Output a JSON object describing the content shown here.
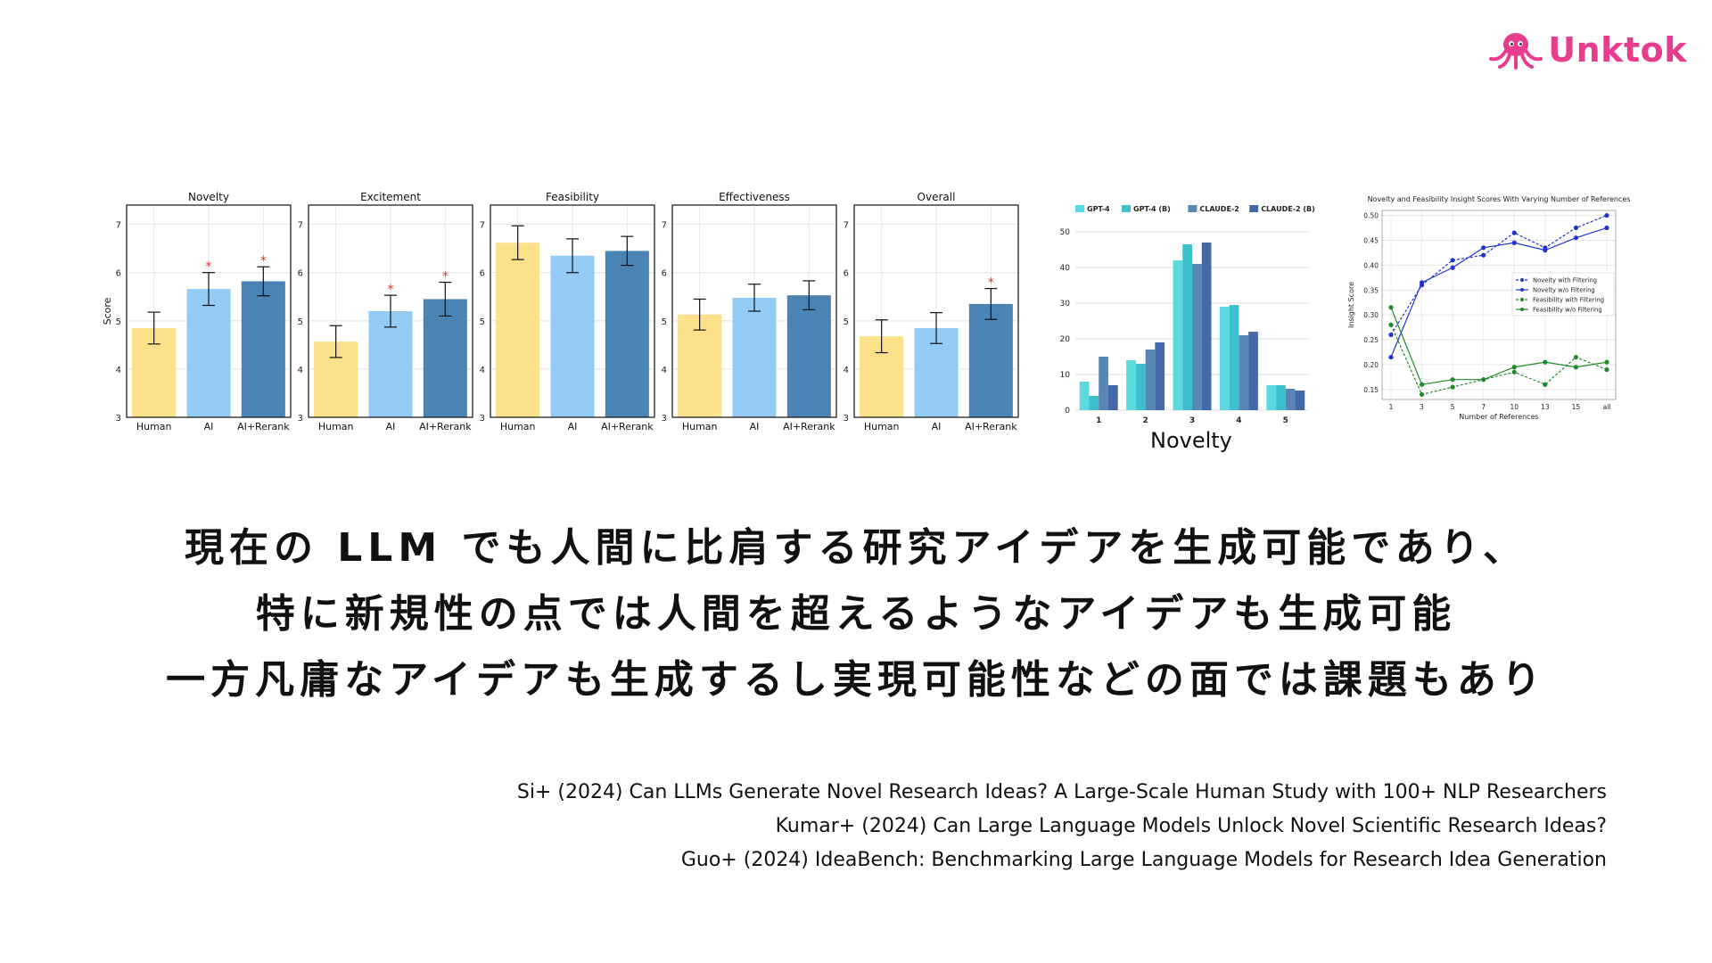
{
  "brand": {
    "name": "Unktok",
    "color": "#e83c8f",
    "icon": "octopus-icon"
  },
  "chart_data": [
    {
      "type": "bar",
      "title": "Novelty",
      "ylabel": "Score",
      "ylim": [
        3,
        7.4
      ],
      "yticks": [
        3,
        4,
        5,
        6,
        7
      ],
      "categories": [
        "Human",
        "AI",
        "AI+Rerank"
      ],
      "values": [
        4.85,
        5.66,
        5.82
      ],
      "errors": [
        0.33,
        0.34,
        0.3
      ],
      "significant": [
        false,
        true,
        true
      ],
      "colors": [
        "#fde08a",
        "#93cbf4",
        "#4a84b5"
      ]
    },
    {
      "type": "bar",
      "title": "Excitement",
      "ylabel": "",
      "ylim": [
        3,
        7.4
      ],
      "yticks": [
        3,
        4,
        5,
        6,
        7
      ],
      "categories": [
        "Human",
        "AI",
        "AI+Rerank"
      ],
      "values": [
        4.57,
        5.2,
        5.45
      ],
      "errors": [
        0.33,
        0.33,
        0.35
      ],
      "significant": [
        false,
        true,
        true
      ],
      "colors": [
        "#fde08a",
        "#93cbf4",
        "#4a84b5"
      ]
    },
    {
      "type": "bar",
      "title": "Feasibility",
      "ylabel": "",
      "ylim": [
        3,
        7.4
      ],
      "yticks": [
        3,
        4,
        5,
        6,
        7
      ],
      "categories": [
        "Human",
        "AI",
        "AI+Rerank"
      ],
      "values": [
        6.62,
        6.35,
        6.45
      ],
      "errors": [
        0.35,
        0.35,
        0.3
      ],
      "significant": [
        false,
        false,
        false
      ],
      "colors": [
        "#fde08a",
        "#93cbf4",
        "#4a84b5"
      ]
    },
    {
      "type": "bar",
      "title": "Effectiveness",
      "ylabel": "",
      "ylim": [
        3,
        7.4
      ],
      "yticks": [
        3,
        4,
        5,
        6,
        7
      ],
      "categories": [
        "Human",
        "AI",
        "AI+Rerank"
      ],
      "values": [
        5.13,
        5.48,
        5.53
      ],
      "errors": [
        0.32,
        0.28,
        0.3
      ],
      "significant": [
        false,
        false,
        false
      ],
      "colors": [
        "#fde08a",
        "#93cbf4",
        "#4a84b5"
      ]
    },
    {
      "type": "bar",
      "title": "Overall",
      "ylabel": "",
      "ylim": [
        3,
        7.4
      ],
      "yticks": [
        3,
        4,
        5,
        6,
        7
      ],
      "categories": [
        "Human",
        "AI",
        "AI+Rerank"
      ],
      "values": [
        4.68,
        4.85,
        5.35
      ],
      "errors": [
        0.34,
        0.32,
        0.32
      ],
      "significant": [
        false,
        false,
        true
      ],
      "colors": [
        "#fde08a",
        "#93cbf4",
        "#4a84b5"
      ]
    },
    {
      "type": "bar",
      "caption": "Novelty",
      "ylim": [
        0,
        52
      ],
      "yticks": [
        0,
        10,
        20,
        30,
        40,
        50
      ],
      "categories": [
        "1",
        "2",
        "3",
        "4",
        "5"
      ],
      "series": [
        {
          "name": "GPT-4",
          "color": "#5cd8df",
          "values": [
            8,
            14,
            42,
            29,
            7
          ]
        },
        {
          "name": "GPT-4 (B)",
          "color": "#3dbfcd",
          "values": [
            4,
            13,
            46.5,
            29.5,
            7
          ]
        },
        {
          "name": "CLAUDE-2",
          "color": "#5887b5",
          "values": [
            15,
            17,
            41,
            21,
            6
          ]
        },
        {
          "name": "CLAUDE-2 (B)",
          "color": "#4468a8",
          "values": [
            7,
            19,
            47,
            22,
            5.5
          ]
        }
      ]
    },
    {
      "type": "line",
      "title": "Novelty and Feasibility Insight Scores With Varying Number of References",
      "xlabel": "Number of References",
      "ylabel": "Insight Score",
      "categories": [
        "1",
        "3",
        "5",
        "7",
        "10",
        "13",
        "15",
        "all"
      ],
      "ylim": [
        0.13,
        0.51
      ],
      "yticks": [
        0.15,
        0.2,
        0.25,
        0.3,
        0.35,
        0.4,
        0.45,
        0.5
      ],
      "ytick_labels": [
        "0.15",
        "0.20",
        "0.25",
        "0.30",
        "0.35",
        "0.40",
        "0.45",
        "0.50"
      ],
      "legend_position": "right",
      "series": [
        {
          "name": "Novelty with Filtering",
          "color": "#2233cc",
          "dash": true,
          "values": [
            0.26,
            0.36,
            0.41,
            0.42,
            0.465,
            0.435,
            0.475,
            0.5
          ]
        },
        {
          "name": "Novelty w/o Filtering",
          "color": "#2233cc",
          "dash": false,
          "values": [
            0.215,
            0.365,
            0.395,
            0.435,
            0.445,
            0.43,
            0.455,
            0.475
          ]
        },
        {
          "name": "Feasibility with Filtering",
          "color": "#1f8a2a",
          "dash": true,
          "values": [
            0.28,
            0.14,
            0.155,
            0.17,
            0.185,
            0.16,
            0.215,
            0.19
          ]
        },
        {
          "name": "Feasibility w/o Filtering",
          "color": "#1f8a2a",
          "dash": false,
          "values": [
            0.315,
            0.16,
            0.17,
            0.17,
            0.195,
            0.205,
            0.195,
            0.205
          ]
        }
      ]
    }
  ],
  "headline": [
    "現在の LLM でも人間に比肩する研究アイデアを生成可能であり、",
    "特に新規性の点では人間を超えるようなアイデアも生成可能",
    "一方凡庸なアイデアも生成するし実現可能性などの面では課題もあり"
  ],
  "references": [
    "Si+ (2024) Can LLMs Generate Novel Research Ideas? A Large-Scale Human Study with 100+ NLP Researchers",
    "Kumar+ (2024) Can Large Language Models Unlock Novel Scientific Research Ideas?",
    "Guo+ (2024) IdeaBench: Benchmarking Large Language Models for Research Idea Generation"
  ]
}
